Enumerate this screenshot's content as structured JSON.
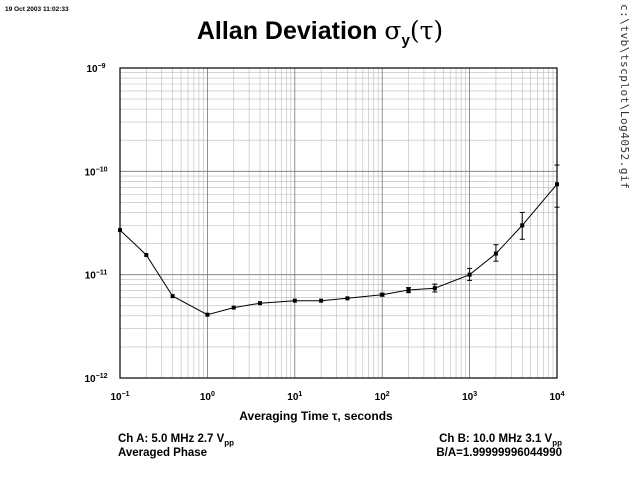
{
  "header": {
    "timestamp": "19 Oct 2003 11:02:33",
    "side_path": "c:\\tvb\\tscplot\\Log4052.gif"
  },
  "chart_data": {
    "type": "scatter",
    "title": "Allan Deviation σy(τ)",
    "xlabel": "Averaging Time τ, seconds",
    "ylabel": "",
    "x_scale": "log",
    "y_scale": "log",
    "xlim": [
      0.1,
      10000
    ],
    "ylim": [
      1e-12,
      1e-09
    ],
    "grid": true,
    "x_ticks": [
      {
        "mant": "10",
        "exp": "−1"
      },
      {
        "mant": "10",
        "exp": "0"
      },
      {
        "mant": "10",
        "exp": "1"
      },
      {
        "mant": "10",
        "exp": "2"
      },
      {
        "mant": "10",
        "exp": "3"
      },
      {
        "mant": "10",
        "exp": "4"
      }
    ],
    "y_ticks": [
      {
        "mant": "10",
        "exp": "−12"
      },
      {
        "mant": "10",
        "exp": "−11"
      },
      {
        "mant": "10",
        "exp": "−10"
      },
      {
        "mant": "10",
        "exp": "−9"
      }
    ],
    "series": [
      {
        "x": [
          0.1,
          0.2,
          0.4,
          1,
          2,
          4,
          10,
          20,
          40,
          100,
          200,
          400,
          1000,
          2000,
          4000,
          10000
        ],
        "y": [
          2.7e-11,
          1.55e-11,
          6.2e-12,
          4.1e-12,
          4.8e-12,
          5.3e-12,
          5.6e-12,
          5.6e-12,
          5.9e-12,
          6.4e-12,
          7.1e-12,
          7.4e-12,
          1e-11,
          1.6e-11,
          3e-11,
          7.5e-11
        ],
        "err_low": [
          2.7e-11,
          1.55e-11,
          6.2e-12,
          4.1e-12,
          4.8e-12,
          5.3e-12,
          5.6e-12,
          5.6e-12,
          5.9e-12,
          6.2e-12,
          6.7e-12,
          6.8e-12,
          8.8e-12,
          1.35e-11,
          2.2e-11,
          4.5e-11
        ],
        "err_high": [
          2.7e-11,
          1.55e-11,
          6.2e-12,
          4.1e-12,
          4.8e-12,
          5.3e-12,
          5.6e-12,
          5.6e-12,
          5.9e-12,
          6.6e-12,
          7.5e-12,
          8.1e-12,
          1.15e-11,
          1.95e-11,
          4e-11,
          1.15e-10
        ]
      }
    ]
  },
  "footer": {
    "ch_a_prefix": "Ch A: 5.0 MHz 2.7 V",
    "ch_a_sub": "pp",
    "mode": "Averaged Phase",
    "ch_b_prefix": "Ch B: 10.0 MHz 3.1 V",
    "ch_b_sub": "pp",
    "ratio": "B/A=1.99999996044990"
  }
}
